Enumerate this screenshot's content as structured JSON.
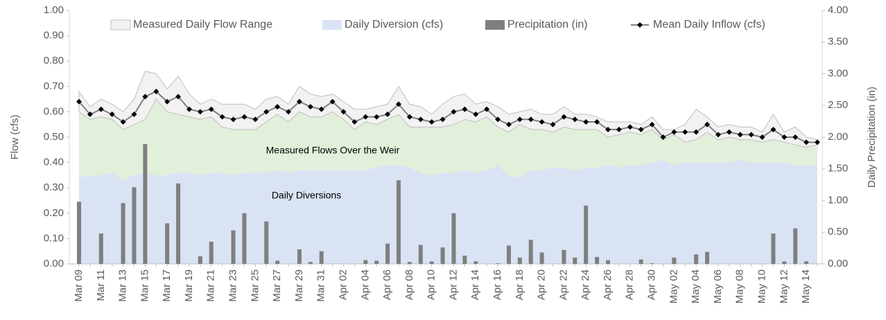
{
  "chart_data": {
    "type": "combo",
    "categories": [
      "Mar 09",
      null,
      "Mar 11",
      null,
      "Mar 13",
      null,
      "Mar 15",
      null,
      "Mar 17",
      null,
      "Mar 19",
      null,
      "Mar 21",
      null,
      "Mar 23",
      null,
      "Mar 25",
      null,
      "Mar 27",
      null,
      "Mar 29",
      null,
      "Mar 31",
      null,
      "Apr 02",
      null,
      "Apr 04",
      null,
      "Apr 06",
      null,
      "Apr 08",
      null,
      "Apr 10",
      null,
      "Apr 12",
      null,
      "Apr 14",
      null,
      "Apr 16",
      null,
      "Apr 18",
      null,
      "Apr 20",
      null,
      "Apr 22",
      null,
      "Apr 24",
      null,
      "Apr 26",
      null,
      "Apr 28",
      null,
      "Apr 30",
      null,
      "May 02",
      null,
      "May 04",
      null,
      "May 06",
      null,
      "May 08",
      null,
      "May 10",
      null,
      "May 12",
      null,
      "May 14",
      null
    ],
    "ylabel": "Flow (cfs)",
    "y2label": "Daily Precipitation (in)",
    "ylim": [
      0,
      1
    ],
    "yticks": [
      {
        "value": 0,
        "label": "0.00"
      },
      {
        "value": 0.1,
        "label": "0.10"
      },
      {
        "value": 0.2,
        "label": "0.20"
      },
      {
        "value": 0.3,
        "label": "0.30"
      },
      {
        "value": 0.4,
        "label": "0.40"
      },
      {
        "value": 0.5,
        "label": "0.50"
      },
      {
        "value": 0.6,
        "label": "0.60"
      },
      {
        "value": 0.7,
        "label": "0.70"
      },
      {
        "value": 0.8,
        "label": "0.80"
      },
      {
        "value": 0.9,
        "label": "0.90"
      },
      {
        "value": 1,
        "label": "1.00"
      }
    ],
    "y2lim": [
      0,
      4
    ],
    "y2ticks": [
      {
        "value": 0,
        "label": "0.00"
      },
      {
        "value": 0.5,
        "label": "0.50"
      },
      {
        "value": 1,
        "label": "1.00"
      },
      {
        "value": 1.5,
        "label": "1.50"
      },
      {
        "value": 2,
        "label": "2.00"
      },
      {
        "value": 2.5,
        "label": "2.50"
      },
      {
        "value": 3,
        "label": "3.00"
      },
      {
        "value": 3.5,
        "label": "3.50"
      },
      {
        "value": 4,
        "label": "4.00"
      }
    ],
    "annotations": [
      "Measured Flows Over the Weir",
      "Daily Diversions"
    ],
    "weir_color": "#e2efda",
    "series": [
      {
        "name": "Measured Daily Flow Range",
        "color": "#f2f2f2",
        "high": [
          0.68,
          0.62,
          0.65,
          0.63,
          0.6,
          0.65,
          0.76,
          0.75,
          0.69,
          0.74,
          0.67,
          0.63,
          0.65,
          0.63,
          0.63,
          0.63,
          0.61,
          0.65,
          0.66,
          0.63,
          0.7,
          0.67,
          0.66,
          0.67,
          0.64,
          0.61,
          0.61,
          0.62,
          0.63,
          0.7,
          0.63,
          0.62,
          0.59,
          0.63,
          0.66,
          0.67,
          0.63,
          0.64,
          0.62,
          0.59,
          0.6,
          0.61,
          0.59,
          0.59,
          0.62,
          0.59,
          0.59,
          0.58,
          0.56,
          0.56,
          0.56,
          0.55,
          0.58,
          0.53,
          0.53,
          0.55,
          0.61,
          0.58,
          0.54,
          0.55,
          0.54,
          0.54,
          0.52,
          0.59,
          0.52,
          0.54,
          0.5,
          0.49
        ],
        "low": [
          0.6,
          0.57,
          0.58,
          0.57,
          0.53,
          0.55,
          0.57,
          0.65,
          0.6,
          0.59,
          0.58,
          0.57,
          0.58,
          0.54,
          0.53,
          0.53,
          0.53,
          0.56,
          0.59,
          0.56,
          0.6,
          0.58,
          0.58,
          0.6,
          0.57,
          0.53,
          0.56,
          0.55,
          0.57,
          0.59,
          0.54,
          0.54,
          0.54,
          0.54,
          0.55,
          0.57,
          0.56,
          0.58,
          0.54,
          0.52,
          0.55,
          0.53,
          0.53,
          0.52,
          0.54,
          0.53,
          0.53,
          0.53,
          0.5,
          0.51,
          0.52,
          0.51,
          0.53,
          0.49,
          0.51,
          0.48,
          0.49,
          0.52,
          0.49,
          0.5,
          0.49,
          0.49,
          0.48,
          0.49,
          0.48,
          0.47,
          0.46,
          0.47
        ]
      },
      {
        "name": "Daily Diversion (cfs)",
        "color": "#dae3f3",
        "values": [
          0.34,
          0.35,
          0.35,
          0.36,
          0.33,
          0.35,
          0.36,
          0.35,
          0.35,
          0.36,
          0.36,
          0.35,
          0.36,
          0.36,
          0.35,
          0.36,
          0.36,
          0.36,
          0.37,
          0.36,
          0.37,
          0.37,
          0.37,
          0.37,
          0.37,
          0.37,
          0.37,
          0.38,
          0.39,
          0.39,
          0.38,
          0.36,
          0.35,
          0.36,
          0.36,
          0.37,
          0.36,
          0.37,
          0.39,
          0.35,
          0.34,
          0.37,
          0.37,
          0.38,
          0.38,
          0.37,
          0.38,
          0.38,
          0.39,
          0.38,
          0.39,
          0.39,
          0.4,
          0.41,
          0.39,
          0.4,
          0.4,
          0.4,
          0.4,
          0.4,
          0.41,
          0.4,
          0.4,
          0.4,
          0.4,
          0.39,
          0.39,
          0.39
        ]
      },
      {
        "name": "Precipitation (in)",
        "color": "#7f7f7f",
        "axis": "y2",
        "values": [
          0.98,
          0,
          0.48,
          0,
          0.96,
          1.21,
          1.89,
          0,
          0.64,
          1.27,
          0,
          0.12,
          0.35,
          0,
          0.53,
          0.8,
          0,
          0.67,
          0.05,
          0,
          0.23,
          0.03,
          0.2,
          0,
          0,
          0,
          0.06,
          0.05,
          0.32,
          1.32,
          0.03,
          0.3,
          0.04,
          0.26,
          0.8,
          0.13,
          0.04,
          0,
          0.01,
          0.29,
          0.1,
          0.38,
          0.18,
          0,
          0.22,
          0.1,
          0.92,
          0.11,
          0.06,
          0,
          0,
          0.07,
          0.01,
          0,
          0.1,
          0,
          0.15,
          0.19,
          0,
          0,
          0,
          0,
          0,
          0.48,
          0.04,
          0.56,
          0.04,
          0
        ]
      },
      {
        "name": "Mean Daily Inflow (cfs)",
        "color": "#000000",
        "values": [
          0.64,
          0.59,
          0.61,
          0.59,
          0.56,
          0.59,
          0.66,
          0.68,
          0.64,
          0.66,
          0.61,
          0.6,
          0.61,
          0.58,
          0.57,
          0.58,
          0.57,
          0.6,
          0.62,
          0.6,
          0.64,
          0.62,
          0.61,
          0.64,
          0.6,
          0.56,
          0.58,
          0.58,
          0.59,
          0.63,
          0.58,
          0.57,
          0.56,
          0.57,
          0.6,
          0.61,
          0.59,
          0.61,
          0.57,
          0.55,
          0.57,
          0.57,
          0.56,
          0.55,
          0.58,
          0.57,
          0.56,
          0.56,
          0.53,
          0.53,
          0.54,
          0.53,
          0.55,
          0.5,
          0.52,
          0.52,
          0.52,
          0.55,
          0.51,
          0.52,
          0.51,
          0.51,
          0.5,
          0.53,
          0.5,
          0.5,
          0.48,
          0.48
        ]
      }
    ]
  }
}
